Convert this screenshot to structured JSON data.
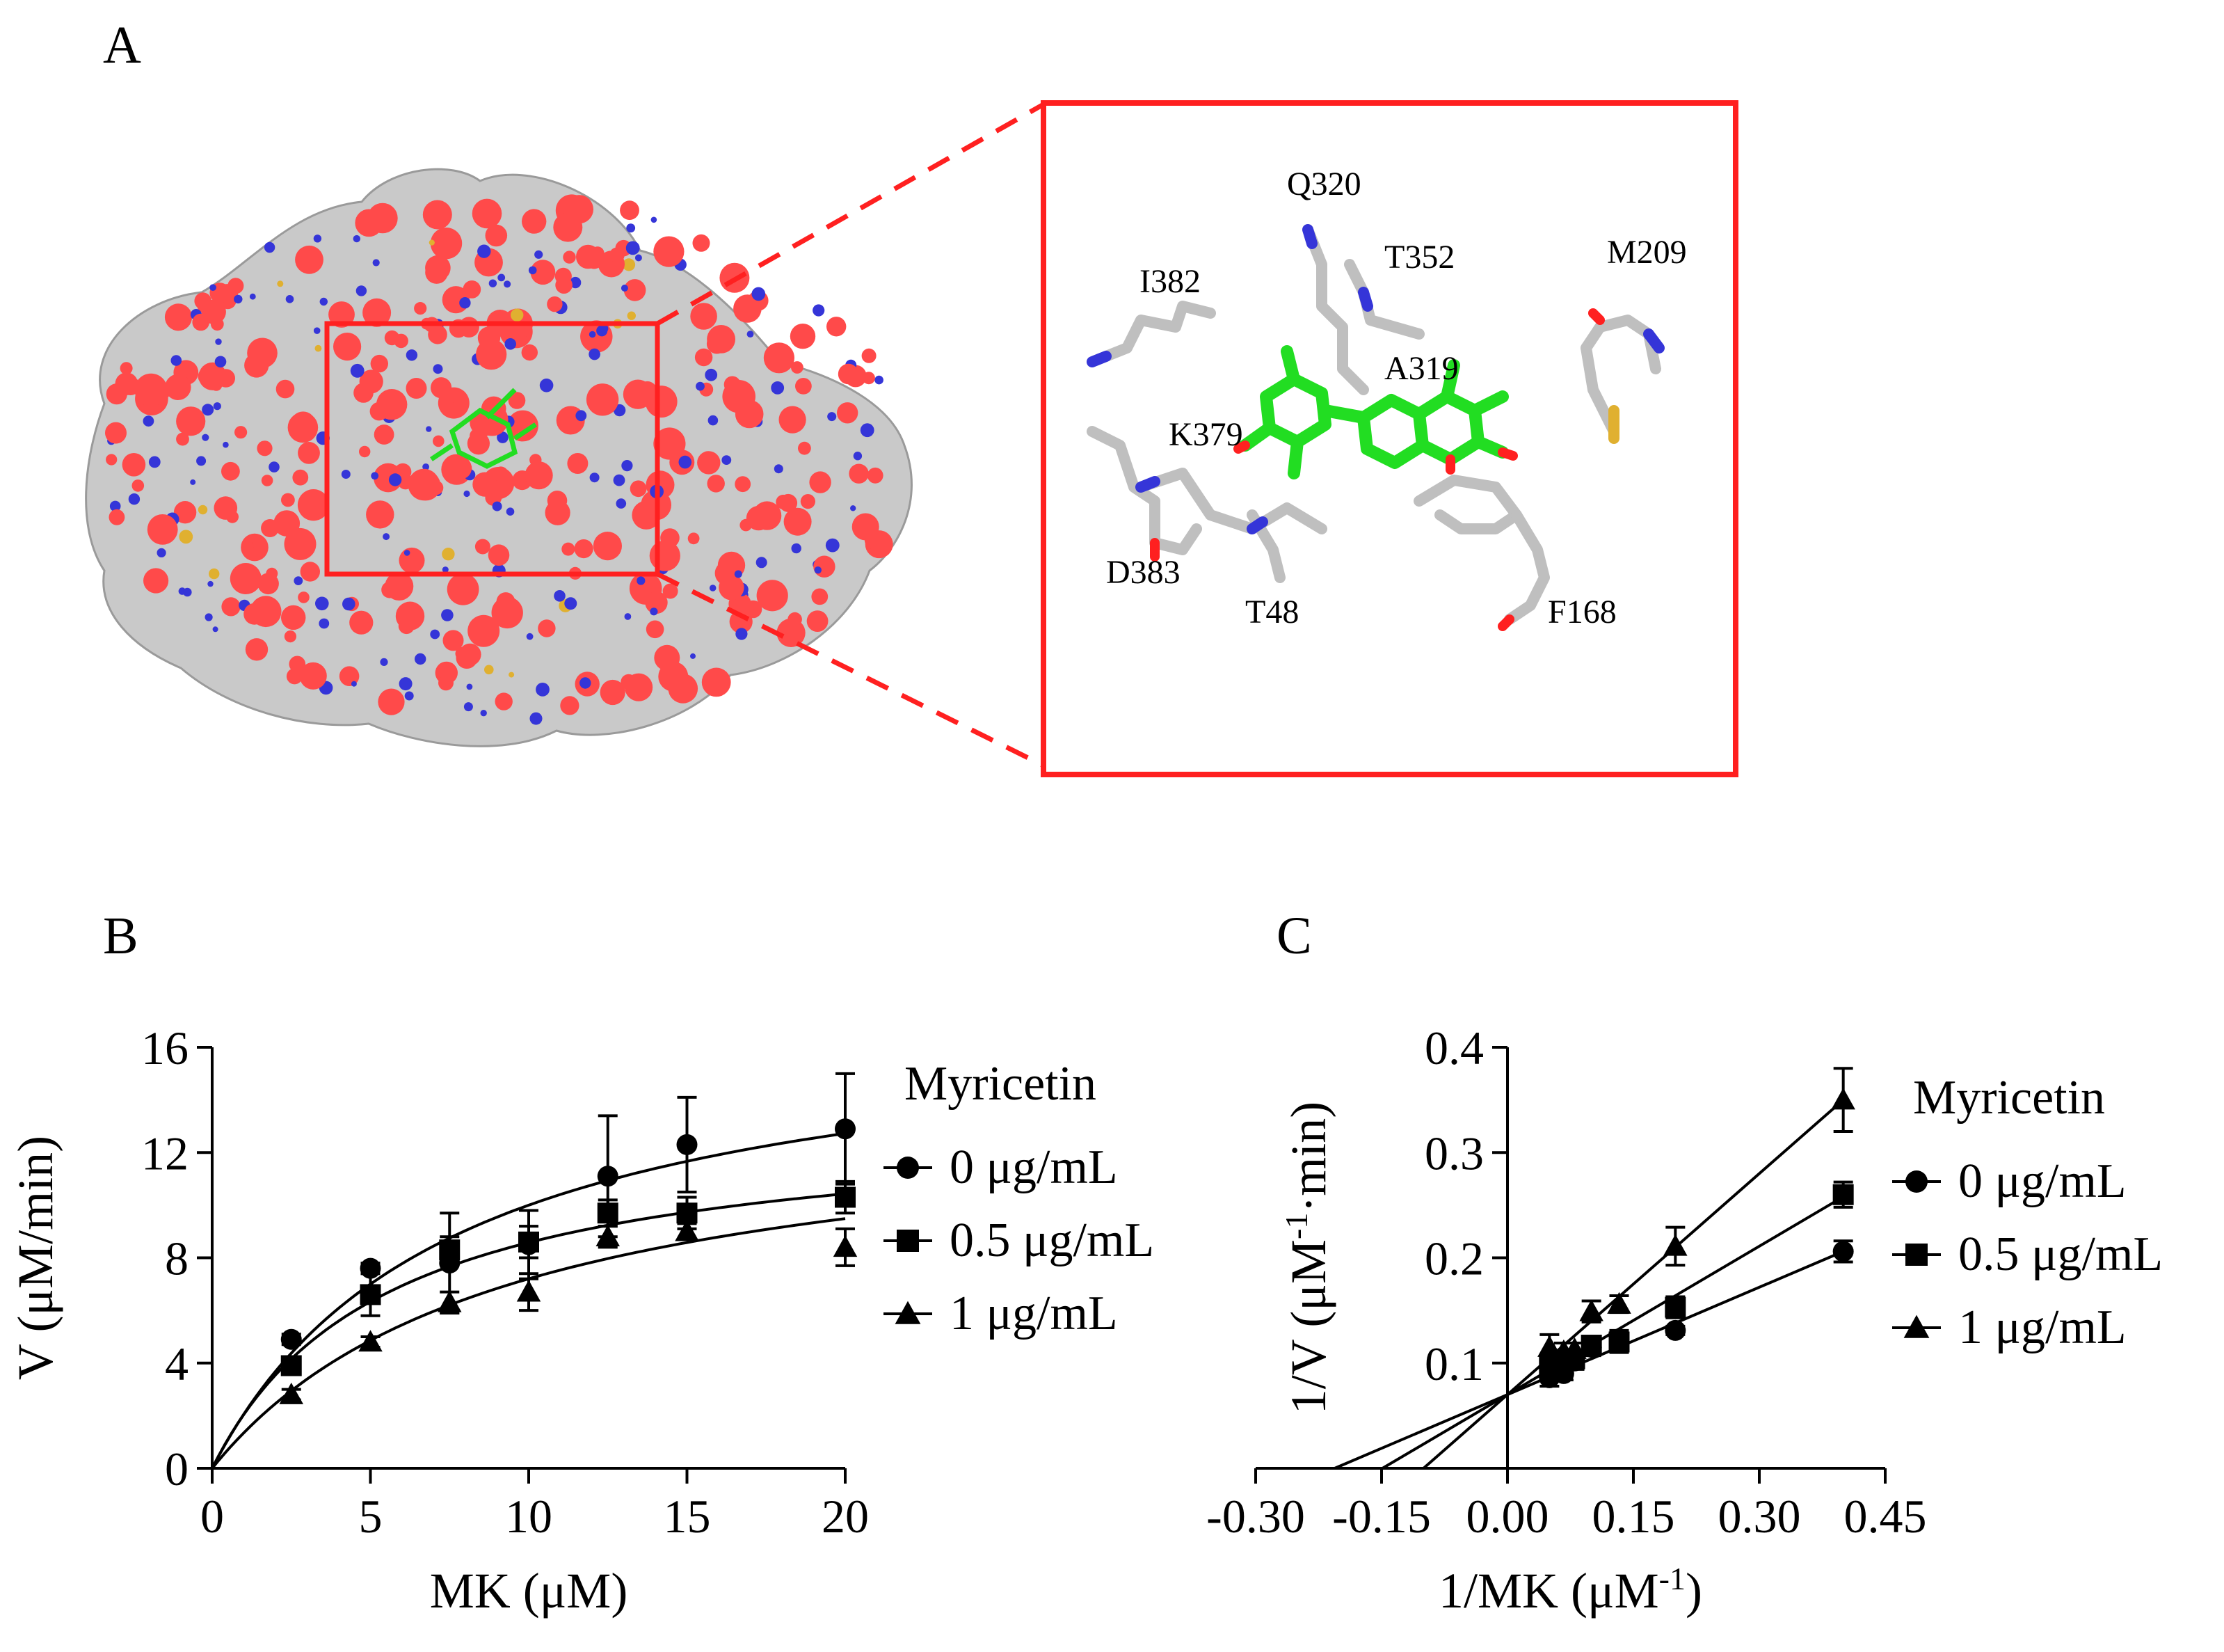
{
  "panel_a": {
    "letter": "A",
    "residues": [
      "Q320",
      "T352",
      "M209",
      "I382",
      "A319",
      "K379",
      "D383",
      "T48",
      "F168"
    ],
    "colors": {
      "surface": "#c9c9c9",
      "oxygen": "#ff4a4a",
      "nitrogen": "#3535d8",
      "sulfur": "#e0b030",
      "ligand": "#22dd22",
      "box": "#ff2020"
    }
  },
  "chart_data": [
    {
      "panel": "B",
      "type": "scatter",
      "xlabel": "MK (μM)",
      "ylabel": "V (μM/min)",
      "xlim": [
        0,
        20
      ],
      "ylim": [
        0,
        16
      ],
      "xticks": [
        "0",
        "5",
        "10",
        "15",
        "20"
      ],
      "yticks": [
        "0",
        "4",
        "8",
        "12",
        "16"
      ],
      "legend_title": "Myricetin",
      "legend_position": "right",
      "series": [
        {
          "name": "0 μg/mL",
          "marker": "circle",
          "x": [
            2.5,
            5,
            7.5,
            10,
            12.5,
            15,
            20
          ],
          "y": [
            4.9,
            7.6,
            7.8,
            8.5,
            11.1,
            12.3,
            12.9
          ],
          "err": [
            0.2,
            0.2,
            1.9,
            1.3,
            2.3,
            1.8,
            2.1
          ],
          "fit": {
            "vmax": 17.5,
            "km": 7.5
          }
        },
        {
          "name": "0.5 μg/mL",
          "marker": "square",
          "x": [
            2.5,
            5,
            7.5,
            10,
            12.5,
            15,
            20
          ],
          "y": [
            3.9,
            6.6,
            8.3,
            8.6,
            9.7,
            9.7,
            10.3
          ],
          "err": [
            0.2,
            0.8,
            0.5,
            0.6,
            0.5,
            0.6,
            0.6
          ],
          "fit": {
            "vmax": 13.3,
            "km": 5.5
          }
        },
        {
          "name": "1 μg/mL",
          "marker": "triangle",
          "x": [
            2.5,
            5,
            7.5,
            10,
            12.5,
            15,
            20
          ],
          "y": [
            2.8,
            4.8,
            6.3,
            6.7,
            8.8,
            9.0,
            8.4
          ],
          "err": [
            0.2,
            0.2,
            0.4,
            0.7,
            0.4,
            0.3,
            0.7
          ],
          "fit": {
            "vmax": 13.9,
            "km": 9.3
          }
        }
      ]
    },
    {
      "panel": "C",
      "type": "scatter",
      "xlabel": "1/MK (μM",
      "xlabel_sup": "-1",
      "xlabel_end": ")",
      "ylabel": "1/V (μM",
      "ylabel_sup": "-1",
      "ylabel_end": "·min)",
      "xlim": [
        -0.3,
        0.45
      ],
      "ylim": [
        0,
        0.4
      ],
      "xticks": [
        "-0.30",
        "-0.15",
        "0.00",
        "0.15",
        "0.30",
        "0.45"
      ],
      "yticks": [
        "0.1",
        "0.2",
        "0.3",
        "0.4"
      ],
      "legend_title": "Myricetin",
      "legend_position": "right",
      "series": [
        {
          "name": "0 μg/mL",
          "marker": "circle",
          "x": [
            0.05,
            0.067,
            0.08,
            0.1,
            0.133,
            0.2,
            0.4
          ],
          "y": [
            0.086,
            0.09,
            0.102,
            0.115,
            0.123,
            0.131,
            0.206
          ],
          "err": [
            0.008,
            0.006,
            0.008,
            0.008,
            0.008,
            0.004,
            0.01
          ],
          "fit": {
            "intercept": 0.07,
            "slope": 0.34
          }
        },
        {
          "name": "0.5 μg/mL",
          "marker": "square",
          "x": [
            0.05,
            0.067,
            0.08,
            0.1,
            0.133,
            0.2,
            0.4
          ],
          "y": [
            0.097,
            0.103,
            0.104,
            0.117,
            0.12,
            0.153,
            0.26
          ],
          "err": [
            0.008,
            0.006,
            0.006,
            0.006,
            0.01,
            0.01,
            0.012
          ],
          "fit": {
            "intercept": 0.07,
            "slope": 0.47
          }
        },
        {
          "name": "1 μg/mL",
          "marker": "triangle",
          "x": [
            0.05,
            0.067,
            0.08,
            0.1,
            0.133,
            0.2,
            0.4
          ],
          "y": [
            0.115,
            0.111,
            0.113,
            0.149,
            0.156,
            0.211,
            0.35
          ],
          "err": [
            0.012,
            0.008,
            0.006,
            0.01,
            0.008,
            0.018,
            0.03
          ],
          "fit": {
            "intercept": 0.07,
            "slope": 0.7
          }
        }
      ]
    }
  ]
}
